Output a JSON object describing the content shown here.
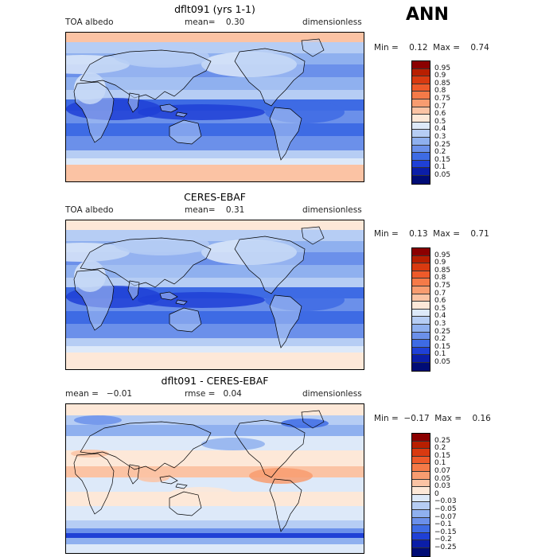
{
  "season": "ANN",
  "panels": [
    {
      "title": "dflt091 (yrs 1-1)",
      "left": "TOA albedo",
      "mid": "mean=    0.30",
      "right": "dimensionless",
      "minmax": "Min =    0.12  Max =    0.74",
      "legend": [
        "0.95",
        "0.9",
        "0.85",
        "0.8",
        "0.75",
        "0.7",
        "0.6",
        "0.5",
        "0.4",
        "0.3",
        "0.25",
        "0.2",
        "0.15",
        "0.1",
        "0.05"
      ],
      "colors": [
        "#8b0000",
        "#b81f00",
        "#d93a10",
        "#ee5a2a",
        "#f57a48",
        "#f89c70",
        "#fbc3a4",
        "#fde8d8",
        "#dde9f9",
        "#b6cdf4",
        "#8fb0ef",
        "#6b90ea",
        "#3e6be4",
        "#1f40d6",
        "#0b1ea8",
        "#000c76"
      ]
    },
    {
      "title": "CERES-EBAF",
      "left": "TOA albedo",
      "mid": "mean=    0.31",
      "right": "dimensionless",
      "minmax": "Min =    0.13  Max =    0.71",
      "legend": [
        "0.95",
        "0.9",
        "0.85",
        "0.8",
        "0.75",
        "0.7",
        "0.6",
        "0.5",
        "0.4",
        "0.3",
        "0.25",
        "0.2",
        "0.15",
        "0.1",
        "0.05"
      ],
      "colors": [
        "#8b0000",
        "#b81f00",
        "#d93a10",
        "#ee5a2a",
        "#f57a48",
        "#f89c70",
        "#fbc3a4",
        "#fde8d8",
        "#dde9f9",
        "#b6cdf4",
        "#8fb0ef",
        "#6b90ea",
        "#3e6be4",
        "#1f40d6",
        "#0b1ea8",
        "#000c76"
      ]
    },
    {
      "title": "dflt091 - CERES-EBAF",
      "left": "mean =   −0.01",
      "mid": "rmse =   0.04",
      "right": "dimensionless",
      "minmax": "Min =  −0.17  Max =    0.16",
      "legend": [
        "0.25",
        "0.2",
        "0.15",
        "0.1",
        "0.07",
        "0.05",
        "0.03",
        "0",
        "−0.03",
        "−0.05",
        "−0.07",
        "−0.1",
        "−0.15",
        "−0.2",
        "−0.25"
      ],
      "colors": [
        "#8b0000",
        "#b81f00",
        "#d93a10",
        "#ee5a2a",
        "#f57a48",
        "#f89c70",
        "#fbc3a4",
        "#fde8d8",
        "#dde9f9",
        "#b6cdf4",
        "#8fb0ef",
        "#6b90ea",
        "#3e6be4",
        "#1f40d6",
        "#0b1ea8",
        "#000c76"
      ]
    }
  ]
}
